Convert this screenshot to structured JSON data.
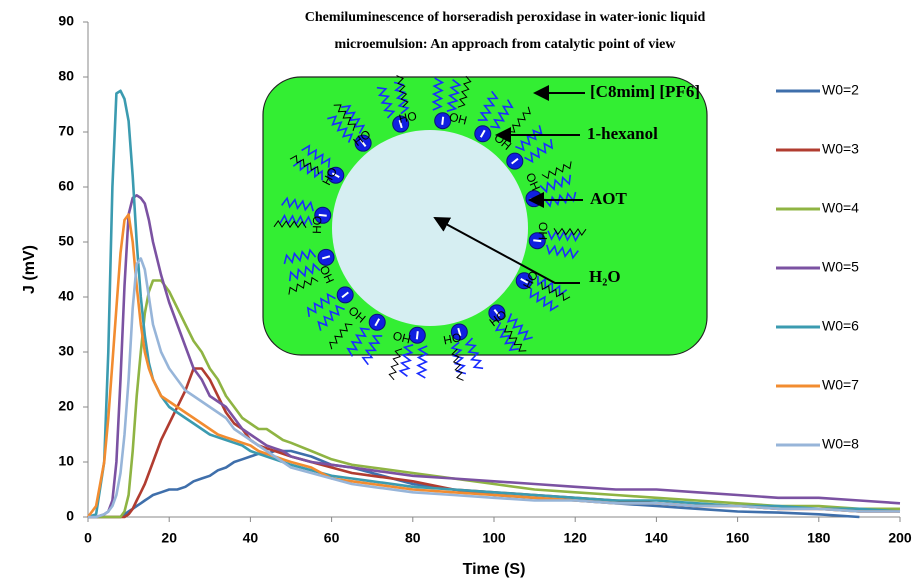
{
  "chart_data": {
    "type": "line",
    "x_label": "Time (S)",
    "y_label": "J (mV)",
    "xlim": [
      0,
      200
    ],
    "xticks": [
      0,
      20,
      40,
      60,
      80,
      100,
      120,
      140,
      160,
      180,
      200
    ],
    "ylim": [
      0,
      90
    ],
    "yticks": [
      0,
      10,
      20,
      30,
      40,
      50,
      60,
      70,
      80,
      90
    ],
    "grid": false,
    "legend": "right",
    "x": [
      0,
      2,
      4,
      5,
      6,
      7,
      8,
      9,
      10,
      11,
      12,
      13,
      14,
      15,
      16,
      18,
      20,
      22,
      24,
      26,
      28,
      30,
      32,
      34,
      36,
      38,
      40,
      42,
      44,
      46,
      48,
      50,
      55,
      60,
      65,
      70,
      80,
      90,
      100,
      110,
      120,
      130,
      140,
      150,
      160,
      170,
      180,
      190,
      200
    ],
    "series": [
      {
        "name": "W0=2",
        "color": "#3f6fab",
        "values": [
          0,
          0,
          0,
          0,
          0,
          0,
          0,
          0.5,
          1,
          1.5,
          2,
          2.5,
          3,
          3.5,
          4,
          4.5,
          5,
          5,
          5.5,
          6.5,
          7,
          7.5,
          8.5,
          9,
          10,
          10.5,
          11,
          11.5,
          11.5,
          12,
          12,
          12,
          11,
          9.5,
          9,
          8,
          6,
          5,
          4,
          3.5,
          3,
          2.5,
          2,
          1.5,
          1,
          0.8,
          0.5,
          0,
          null
        ]
      },
      {
        "name": "W0=3",
        "color": "#b13c30",
        "values": [
          0,
          0,
          0,
          0,
          0,
          0,
          0,
          0,
          0.5,
          1.5,
          3,
          4.5,
          6,
          8,
          10,
          14,
          17,
          20,
          23,
          27,
          27,
          25,
          22,
          19,
          17,
          16,
          14,
          13,
          12.5,
          12,
          11.5,
          11,
          10,
          9,
          8,
          7.5,
          6.5,
          5,
          4.5,
          4,
          3.5,
          3,
          2.5,
          2,
          2,
          1.5,
          1.5,
          1,
          1
        ]
      },
      {
        "name": "W0=4",
        "color": "#8fb443",
        "values": [
          0,
          0,
          0,
          0,
          0,
          0,
          0,
          1,
          4,
          12,
          22,
          30,
          37,
          41,
          43,
          43,
          41,
          38,
          35,
          32,
          30,
          27,
          25,
          22,
          20,
          18,
          17,
          16,
          16,
          15,
          14,
          13.5,
          12,
          10.5,
          9.5,
          9,
          8,
          7,
          6,
          5,
          4.5,
          4,
          3.5,
          3,
          2.5,
          2,
          2,
          1.5,
          1.5
        ]
      },
      {
        "name": "W0=5",
        "color": "#7b52a2",
        "values": [
          0,
          0,
          0.5,
          1,
          3,
          10,
          25,
          42,
          55,
          58,
          58.5,
          58,
          57,
          54,
          50,
          44,
          39,
          35,
          31,
          27,
          25,
          22,
          21,
          20,
          18,
          16,
          15,
          14,
          13,
          12.5,
          12,
          11,
          10,
          9.5,
          9,
          8.5,
          7.5,
          7,
          6.5,
          6,
          5.5,
          5,
          5,
          4.5,
          4,
          3.5,
          3.5,
          3,
          2.5
        ]
      },
      {
        "name": "W0=6",
        "color": "#3b9bb0",
        "values": [
          0,
          0.5,
          10,
          30,
          60,
          77,
          77.5,
          76,
          72,
          62,
          50,
          40,
          33,
          28,
          25,
          22,
          20,
          19,
          18,
          17,
          16,
          15,
          14.5,
          14,
          13.5,
          13,
          12,
          11.5,
          11,
          10.5,
          10,
          9.5,
          8.5,
          7.5,
          7,
          6.5,
          5.5,
          5,
          4.5,
          4,
          3.5,
          3,
          3,
          2.5,
          2,
          2,
          1.5,
          1.5,
          1
        ]
      },
      {
        "name": "W0=7",
        "color": "#f28c30",
        "values": [
          0,
          2,
          10,
          18,
          28,
          38,
          48,
          54,
          55,
          50,
          42,
          35,
          30,
          27,
          25,
          22,
          21,
          20,
          19,
          18,
          17,
          16,
          15,
          14.5,
          14,
          13.5,
          13,
          12,
          11.5,
          11,
          10.5,
          10,
          9,
          7,
          6.5,
          6,
          5,
          4.5,
          4,
          3.5,
          3,
          2.5,
          2.5,
          2,
          2,
          1.5,
          1.5,
          1,
          1
        ]
      },
      {
        "name": "W0=8",
        "color": "#97b5d9",
        "values": [
          0,
          0,
          0.5,
          1,
          2,
          4,
          8,
          15,
          25,
          38,
          46,
          47,
          45,
          40,
          35,
          30,
          27,
          25,
          23,
          22,
          21,
          20,
          19,
          18,
          16,
          15,
          14,
          13,
          12,
          11,
          10,
          9,
          8,
          7,
          6,
          5.5,
          4.5,
          4,
          3.5,
          3,
          3,
          2.5,
          2.5,
          2,
          2,
          1.5,
          1.5,
          1,
          1
        ]
      }
    ],
    "inset": {
      "title": [
        "Chemiluminescence of horseradish peroxidase in water-ionic liquid",
        "microemulsion: An approach from catalytic point of view"
      ],
      "labels": [
        "[C8mim] [PF6]",
        "1-hexanol",
        "AOT",
        "H₂O"
      ],
      "head_labels": [
        "OH",
        "OH",
        "OH",
        "OH",
        "OH",
        "OH",
        "OH",
        "HO",
        "HO",
        "HO",
        "HO",
        "HO",
        "HO",
        "HO"
      ]
    }
  }
}
